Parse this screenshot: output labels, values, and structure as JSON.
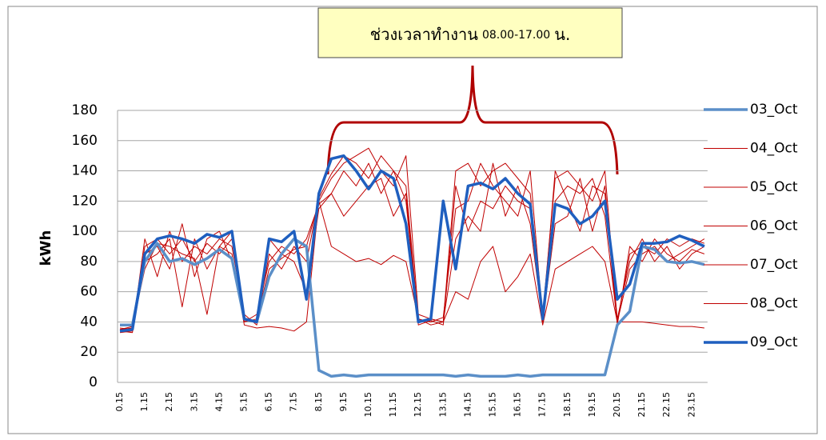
{
  "chart_data": {
    "type": "line",
    "annotation": [
      "ช่วงเวลาทำงาน",
      "08.00-17.00",
      "น."
    ],
    "y_label": "kWh",
    "categories": [
      "0.15",
      null,
      "1.15",
      null,
      "2.15",
      null,
      "3.15",
      null,
      "4.15",
      null,
      "5.15",
      null,
      "6.15",
      null,
      "7.15",
      null,
      "8.15",
      null,
      "9.15",
      null,
      "10.15",
      null,
      "11.15",
      null,
      "12.15",
      null,
      "13.15",
      null,
      "14.15",
      null,
      "15.15",
      null,
      "16.15",
      null,
      "17.15",
      null,
      "18.15",
      null,
      "19.15",
      null,
      "20.15",
      null,
      "21.15",
      null,
      "22.15",
      null,
      "23.15",
      null
    ],
    "ylim": [
      0,
      180
    ],
    "yticks": [
      0,
      20,
      40,
      60,
      80,
      100,
      120,
      140,
      160,
      180
    ],
    "grid": true,
    "series": [
      {
        "name": "03_Oct",
        "color": "#5b8fc8",
        "width": 3.5,
        "values": [
          38,
          38,
          80,
          92,
          80,
          82,
          78,
          82,
          88,
          82,
          42,
          40,
          70,
          85,
          95,
          90,
          8,
          4,
          5,
          4,
          5,
          5,
          5,
          5,
          5,
          5,
          5,
          4,
          5,
          4,
          4,
          4,
          5,
          4,
          5,
          5,
          5,
          5,
          5,
          5,
          38,
          47,
          90,
          88,
          80,
          79,
          80,
          78
        ]
      },
      {
        "name": "04_Oct",
        "color": "#c00000",
        "width": 1,
        "values": [
          35,
          36,
          90,
          95,
          85,
          95,
          80,
          92,
          85,
          95,
          40,
          42,
          75,
          82,
          88,
          90,
          120,
          135,
          145,
          150,
          155,
          140,
          130,
          150,
          45,
          42,
          40,
          140,
          145,
          130,
          140,
          145,
          135,
          125,
          45,
          135,
          140,
          130,
          120,
          140,
          40,
          85,
          90,
          85,
          95,
          90,
          95,
          92
        ]
      },
      {
        "name": "05_Oct",
        "color": "#c00000",
        "width": 1,
        "values": [
          33,
          34,
          95,
          70,
          100,
          80,
          90,
          85,
          95,
          90,
          45,
          38,
          85,
          75,
          90,
          80,
          122,
          138,
          150,
          145,
          135,
          150,
          140,
          130,
          42,
          40,
          43,
          115,
          120,
          145,
          130,
          120,
          110,
          140,
          42,
          120,
          130,
          125,
          135,
          110,
          40,
          75,
          85,
          90,
          80,
          85,
          90,
          95
        ]
      },
      {
        "name": "06_Oct",
        "color": "#c00000",
        "width": 1,
        "values": [
          36,
          35,
          85,
          90,
          75,
          105,
          70,
          95,
          100,
          80,
          40,
          45,
          80,
          90,
          85,
          95,
          118,
          125,
          140,
          130,
          145,
          125,
          140,
          120,
          38,
          41,
          38,
          130,
          100,
          120,
          115,
          130,
          120,
          115,
          40,
          140,
          120,
          100,
          130,
          125,
          38,
          90,
          80,
          95,
          85,
          80,
          88,
          85
        ]
      },
      {
        "name": "07_Oct",
        "color": "#c00000",
        "width": 1,
        "values": [
          34,
          33,
          80,
          85,
          95,
          50,
          95,
          75,
          90,
          100,
          42,
          40,
          95,
          85,
          80,
          60,
          115,
          125,
          110,
          120,
          130,
          135,
          110,
          125,
          40,
          42,
          40,
          95,
          110,
          100,
          145,
          110,
          130,
          105,
          40,
          105,
          110,
          135,
          100,
          130,
          42,
          80,
          95,
          80,
          90,
          75,
          85,
          90
        ]
      },
      {
        "name": "08_Oct",
        "color": "#c00000",
        "width": 1,
        "values": [
          35,
          37,
          75,
          92,
          90,
          85,
          82,
          45,
          90,
          85,
          38,
          36,
          37,
          36,
          34,
          40,
          120,
          90,
          85,
          80,
          82,
          78,
          84,
          80,
          42,
          38,
          40,
          60,
          55,
          80,
          90,
          60,
          70,
          85,
          38,
          75,
          80,
          85,
          90,
          80,
          40,
          40,
          40,
          39,
          38,
          37,
          37,
          36
        ]
      },
      {
        "name": "09_Oct",
        "color": "#1f5fbf",
        "width": 3.5,
        "values": [
          34,
          35,
          85,
          95,
          97,
          95,
          92,
          98,
          96,
          100,
          42,
          40,
          95,
          93,
          100,
          55,
          125,
          148,
          150,
          140,
          128,
          140,
          135,
          105,
          40,
          42,
          120,
          75,
          130,
          132,
          128,
          135,
          125,
          118,
          42,
          118,
          115,
          105,
          110,
          120,
          55,
          65,
          92,
          92,
          93,
          97,
          94,
          90
        ]
      }
    ]
  }
}
